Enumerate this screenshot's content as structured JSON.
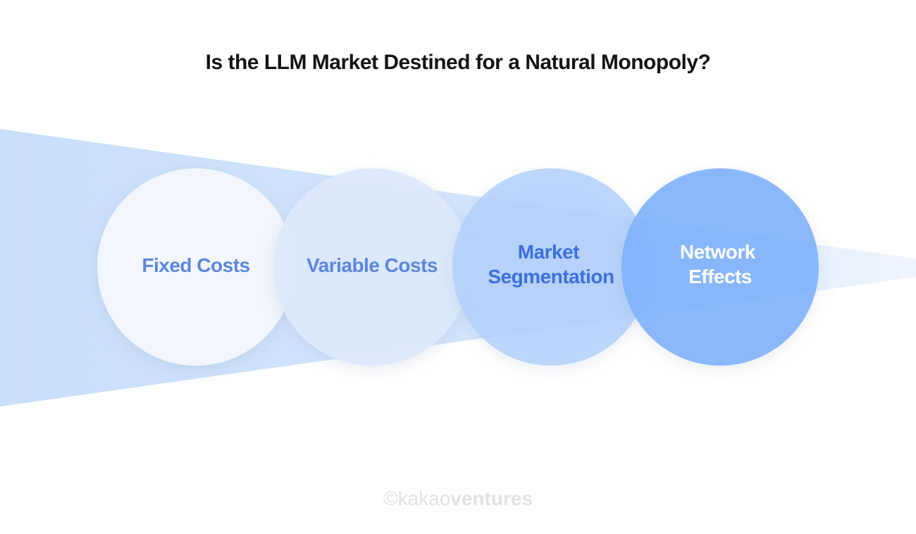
{
  "header": {
    "title": "Is the LLM Market Destined for a Natural Monopoly?"
  },
  "nodes": [
    {
      "lines": [
        "Fixed Costs"
      ]
    },
    {
      "lines": [
        "Variable Costs"
      ]
    },
    {
      "lines": [
        "Market",
        "Segmentation"
      ]
    },
    {
      "lines": [
        "Network",
        "Effects"
      ]
    }
  ],
  "footer": {
    "brand_light": "©kakao",
    "brand_bold": "ventures"
  }
}
